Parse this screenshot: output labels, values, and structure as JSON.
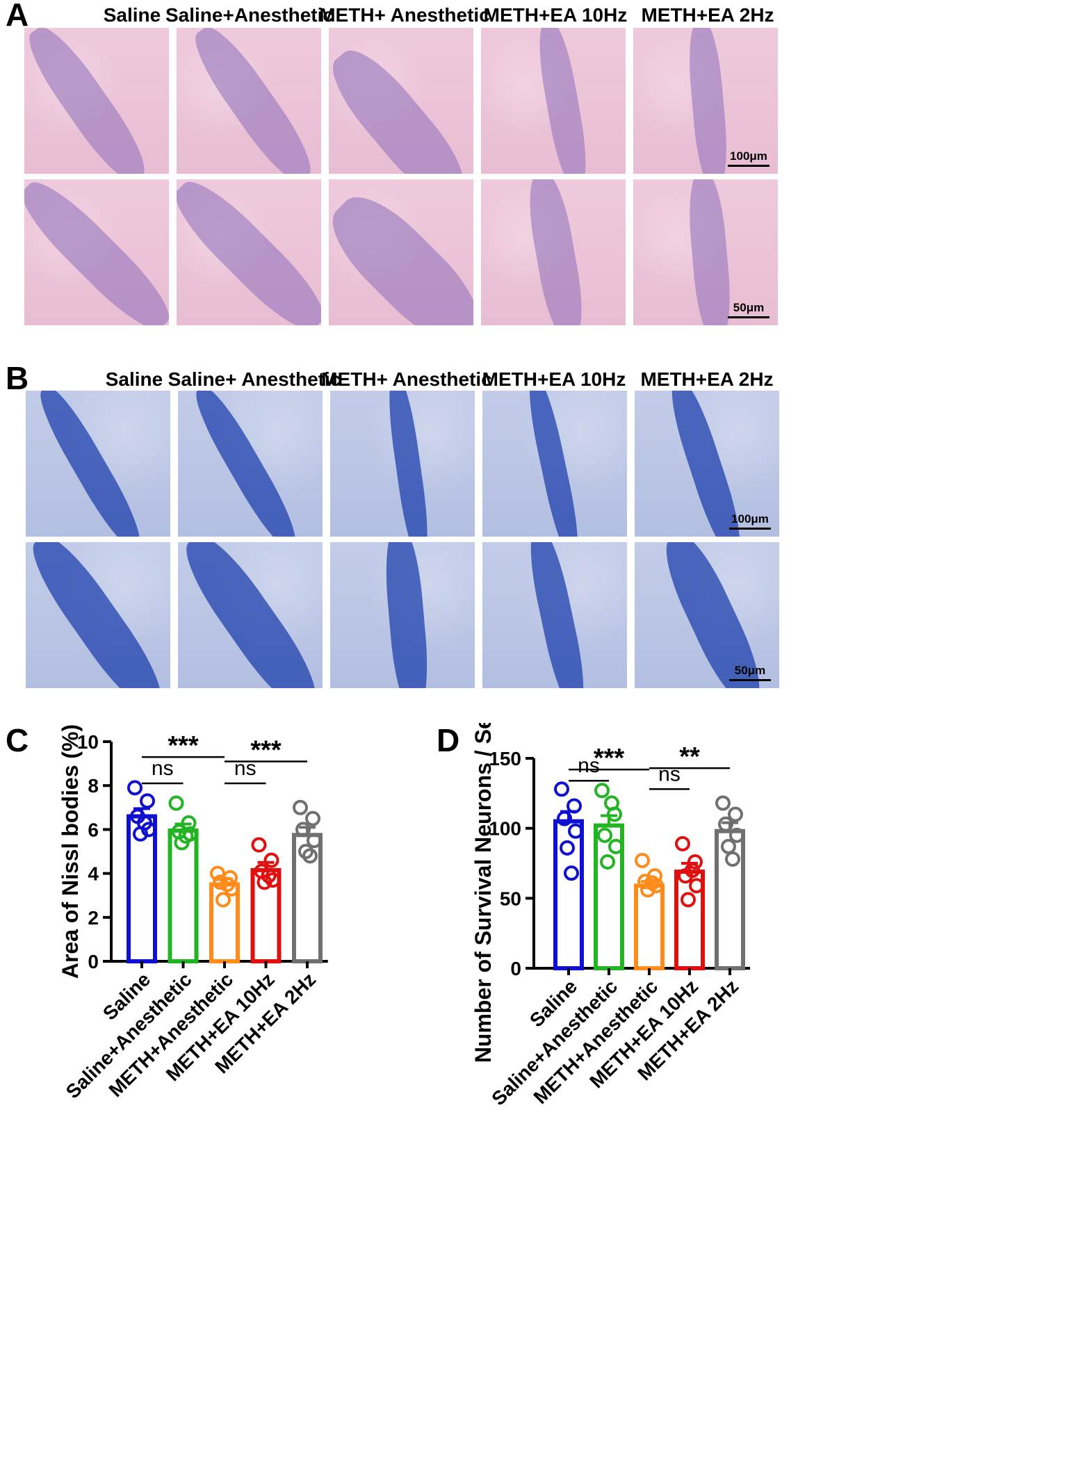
{
  "panels": {
    "a": {
      "letter": "A",
      "titles": [
        "Saline",
        "Saline+Anesthetic",
        "METH+ Anesthetic",
        "METH+EA 10Hz",
        "METH+EA 2Hz"
      ],
      "scale_top": "100μm",
      "scale_bottom": "50μm"
    },
    "b": {
      "letter": "B",
      "titles": [
        "Saline",
        "Saline+ Anesthetic",
        "METH+ Anesthetic",
        "METH+EA 10Hz",
        "METH+EA 2Hz"
      ],
      "scale_top": "100μm",
      "scale_bottom": "50μm"
    },
    "c": {
      "letter": "C"
    },
    "d": {
      "letter": "D"
    }
  },
  "colors": {
    "Saline": "#1010d0",
    "Saline+Anesthetic": "#22b422",
    "METH+Anesthetic": "#ff8c1a",
    "METH+EA 10Hz": "#e01010",
    "METH+EA 2Hz": "#707070"
  },
  "chart_data": [
    {
      "type": "bar",
      "ylabel": "Area of Nissl bodies (%)",
      "ylim": [
        0,
        10
      ],
      "yticks": [
        "0",
        "2",
        "4",
        "6",
        "8",
        "10"
      ],
      "categories": [
        "Saline",
        "Saline+Anesthetic",
        "METH+Anesthetic",
        "METH+EA 10Hz",
        "METH+EA 2Hz"
      ],
      "values": [
        6.6,
        5.95,
        3.5,
        4.15,
        5.75
      ],
      "sem": [
        0.35,
        0.3,
        0.25,
        0.35,
        0.35
      ],
      "points": [
        [
          7.9,
          7.3,
          6.6,
          6.0,
          5.8,
          6.3
        ],
        [
          7.2,
          6.3,
          5.9,
          5.8,
          5.4,
          5.7
        ],
        [
          4.0,
          3.8,
          3.6,
          3.3,
          2.8,
          3.5
        ],
        [
          5.3,
          4.6,
          4.1,
          3.7,
          3.6,
          3.9
        ],
        [
          7.0,
          6.5,
          6.0,
          5.5,
          5.0,
          4.8
        ]
      ],
      "comparisons": [
        {
          "from": 0,
          "to": 2,
          "label": "***",
          "y": 9.3
        },
        {
          "from": 2,
          "to": 4,
          "label": "***",
          "y": 9.1
        },
        {
          "from": 0,
          "to": 1,
          "label": "ns",
          "y": 8.1
        },
        {
          "from": 2,
          "to": 3,
          "label": "ns",
          "y": 8.1
        }
      ]
    },
    {
      "type": "bar",
      "ylabel": "Number of Survival Neurons / Section",
      "ylim": [
        0,
        150
      ],
      "yticks": [
        "0",
        "50",
        "100",
        "150"
      ],
      "categories": [
        "Saline",
        "Saline+Anesthetic",
        "METH+Anesthetic",
        "METH+EA 10Hz",
        "METH+EA 2Hz"
      ],
      "values": [
        105,
        102,
        59,
        69,
        98
      ],
      "sem": [
        7,
        7,
        3,
        6,
        6
      ],
      "points": [
        [
          128,
          116,
          107,
          98,
          86,
          68
        ],
        [
          127,
          110,
          95,
          87,
          76,
          118
        ],
        [
          77,
          66,
          62,
          59,
          56,
          61
        ],
        [
          89,
          76,
          66,
          59,
          49,
          70
        ],
        [
          118,
          110,
          103,
          95,
          87,
          78
        ]
      ],
      "comparisons": [
        {
          "from": 0,
          "to": 2,
          "label": "***",
          "y": 142
        },
        {
          "from": 2,
          "to": 4,
          "label": "**",
          "y": 143
        },
        {
          "from": 0,
          "to": 1,
          "label": "ns",
          "y": 134
        },
        {
          "from": 2,
          "to": 3,
          "label": "ns",
          "y": 128
        }
      ]
    }
  ]
}
